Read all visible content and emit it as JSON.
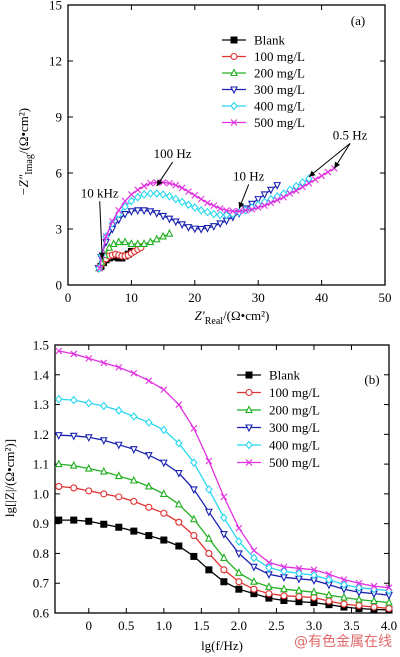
{
  "chart_data": [
    {
      "type": "line",
      "panel_label": "(a)",
      "xlabel_main": "Z′",
      "xlabel_sub": "Real",
      "xlabel_unit": "/(Ω•cm²)",
      "ylabel_main": "−Z″",
      "ylabel_sub": "Imag",
      "ylabel_unit": "/(Ω•cm²)",
      "xlim": [
        0,
        50
      ],
      "ylim": [
        0,
        15
      ],
      "xticks": [
        0,
        10,
        20,
        30,
        40,
        50
      ],
      "yticks": [
        0,
        3,
        6,
        9,
        12,
        15
      ],
      "legend_position": "top-right",
      "annotations": [
        {
          "text": "10 kHz",
          "at": [
            5.4,
            1.4
          ],
          "label_at": [
            5.0,
            4.7
          ]
        },
        {
          "text": "100 Hz",
          "at": [
            14,
            5.3
          ],
          "label_at": [
            16.5,
            6.8
          ]
        },
        {
          "text": "10 Hz",
          "at": [
            27,
            4.1
          ],
          "label_at": [
            28.5,
            5.6
          ]
        },
        {
          "text": "0.5 Hz",
          "at": [
            38,
            5.8
          ],
          "label_at": [
            44.5,
            7.8
          ]
        }
      ],
      "series": [
        {
          "name": "Blank",
          "color": "#000000",
          "marker": "square",
          "x": [
            5.2,
            5.6,
            6.0,
            6.5,
            7.0,
            7.5,
            8.0,
            8.5,
            9.0,
            9.5,
            10.0
          ],
          "y": [
            1.0,
            1.2,
            1.35,
            1.45,
            1.5,
            1.5,
            1.45,
            1.45,
            1.55,
            1.65,
            1.8
          ]
        },
        {
          "name": "100 mg/L",
          "color": "#e03030",
          "marker": "circle",
          "x": [
            5.0,
            5.4,
            6.0,
            6.5,
            7.0,
            7.5,
            8.0,
            8.5,
            9.0,
            9.5,
            10.0,
            10.5,
            11.0,
            11.5
          ],
          "y": [
            0.95,
            1.15,
            1.4,
            1.55,
            1.6,
            1.65,
            1.6,
            1.55,
            1.55,
            1.6,
            1.7,
            1.8,
            1.9,
            2.0
          ]
        },
        {
          "name": "200 mg/L",
          "color": "#22b022",
          "marker": "triangle-up",
          "x": [
            4.9,
            5.3,
            5.8,
            6.5,
            7.2,
            8.0,
            9.0,
            10.0,
            11.0,
            12.0,
            13.0,
            14.0,
            15.0,
            16.0
          ],
          "y": [
            0.9,
            1.2,
            1.6,
            2.0,
            2.2,
            2.3,
            2.3,
            2.2,
            2.2,
            2.2,
            2.3,
            2.45,
            2.6,
            2.75
          ]
        },
        {
          "name": "300 mg/L",
          "color": "#1a22b0",
          "marker": "triangle-down",
          "x": [
            4.8,
            5.2,
            6,
            7,
            8,
            9,
            10,
            11,
            12,
            13,
            14,
            15,
            16,
            17,
            18,
            19,
            20,
            21,
            22,
            23,
            24,
            25,
            26,
            27,
            28,
            29,
            30,
            31,
            32,
            33
          ],
          "y": [
            0.9,
            1.5,
            2.3,
            3.0,
            3.5,
            3.8,
            3.95,
            4.0,
            4.0,
            3.95,
            3.85,
            3.7,
            3.55,
            3.4,
            3.25,
            3.1,
            3.02,
            3.0,
            3.05,
            3.15,
            3.3,
            3.45,
            3.65,
            3.85,
            4.1,
            4.35,
            4.6,
            4.85,
            5.1,
            5.35
          ]
        },
        {
          "name": "400 mg/L",
          "color": "#28d8f0",
          "marker": "diamond",
          "x": [
            4.9,
            5.3,
            6,
            7,
            8,
            9,
            10,
            11,
            12,
            13,
            14,
            15,
            16,
            17,
            18,
            19,
            20,
            21,
            22,
            23,
            24,
            25,
            26,
            27,
            28,
            29,
            30,
            31,
            32,
            33,
            34,
            35,
            36,
            37,
            38
          ],
          "y": [
            0.9,
            1.6,
            2.6,
            3.3,
            3.8,
            4.2,
            4.5,
            4.7,
            4.85,
            4.9,
            4.9,
            4.85,
            4.75,
            4.6,
            4.45,
            4.3,
            4.15,
            4.0,
            3.9,
            3.8,
            3.75,
            3.75,
            3.8,
            3.9,
            4.0,
            4.15,
            4.3,
            4.45,
            4.6,
            4.75,
            4.9,
            5.1,
            5.3,
            5.5,
            5.7
          ]
        },
        {
          "name": "500 mg/L",
          "color": "#e030e0",
          "marker": "x",
          "x": [
            5.0,
            5.4,
            6,
            7,
            8,
            9,
            10,
            11,
            12,
            13,
            14,
            15,
            16,
            17,
            18,
            19,
            20,
            21,
            22,
            23,
            24,
            25,
            26,
            27,
            28,
            29,
            30,
            31,
            32,
            33,
            34,
            35,
            36,
            37,
            38,
            39,
            40,
            41,
            42
          ],
          "y": [
            0.9,
            1.6,
            2.6,
            3.4,
            4.0,
            4.5,
            4.85,
            5.1,
            5.3,
            5.45,
            5.5,
            5.5,
            5.45,
            5.35,
            5.2,
            5.0,
            4.8,
            4.6,
            4.4,
            4.25,
            4.1,
            4.0,
            3.95,
            3.95,
            4.0,
            4.05,
            4.15,
            4.25,
            4.4,
            4.55,
            4.7,
            4.9,
            5.05,
            5.25,
            5.45,
            5.65,
            5.85,
            6.05,
            6.25
          ]
        }
      ]
    },
    {
      "type": "line",
      "panel_label": "(b)",
      "xlabel": "lg(f/Hz)",
      "ylabel": "lg[|Z|/(Ω•cm²)]",
      "xlim": [
        -0.45,
        4.0
      ],
      "ylim": [
        0.6,
        1.5
      ],
      "xticks": [
        0,
        0.5,
        1.0,
        1.5,
        2.0,
        2.5,
        3.0,
        3.5,
        4.0
      ],
      "xtick_labels": [
        "0",
        "0.5",
        "1.0",
        "1.5",
        "2.0",
        "2.5",
        "3.0",
        "3.5",
        "4.0"
      ],
      "yticks": [
        0.6,
        0.7,
        0.8,
        0.9,
        1.0,
        1.1,
        1.2,
        1.3,
        1.4,
        1.5
      ],
      "ytick_labels": [
        "0.6",
        "0.7",
        "0.8",
        "0.9",
        "1.0",
        "1.1",
        "1.2",
        "1.3",
        "1.4",
        "1.5"
      ],
      "legend_position": "top-right",
      "series": [
        {
          "name": "Blank",
          "color": "#000000",
          "marker": "square",
          "x": [
            -0.4,
            -0.2,
            0,
            0.2,
            0.4,
            0.6,
            0.8,
            1.0,
            1.2,
            1.4,
            1.6,
            1.8,
            2.0,
            2.2,
            2.4,
            2.6,
            2.8,
            3.0,
            3.2,
            3.4,
            3.6,
            3.8,
            4.0
          ],
          "y": [
            0.912,
            0.912,
            0.908,
            0.898,
            0.888,
            0.875,
            0.86,
            0.845,
            0.825,
            0.79,
            0.745,
            0.705,
            0.68,
            0.665,
            0.65,
            0.642,
            0.638,
            0.635,
            0.628,
            0.62,
            0.615,
            0.612,
            0.61
          ]
        },
        {
          "name": "100 mg/L",
          "color": "#e03030",
          "marker": "circle",
          "x": [
            -0.4,
            -0.2,
            0,
            0.2,
            0.4,
            0.6,
            0.8,
            1.0,
            1.2,
            1.4,
            1.6,
            1.8,
            2.0,
            2.2,
            2.4,
            2.6,
            2.8,
            3.0,
            3.2,
            3.4,
            3.6,
            3.8,
            4.0
          ],
          "y": [
            1.025,
            1.02,
            1.01,
            1.0,
            0.99,
            0.975,
            0.955,
            0.935,
            0.905,
            0.86,
            0.8,
            0.745,
            0.705,
            0.68,
            0.665,
            0.658,
            0.655,
            0.652,
            0.64,
            0.63,
            0.625,
            0.62,
            0.615
          ]
        },
        {
          "name": "200 mg/L",
          "color": "#22b022",
          "marker": "triangle-up",
          "x": [
            -0.4,
            -0.2,
            0,
            0.2,
            0.4,
            0.6,
            0.8,
            1.0,
            1.2,
            1.4,
            1.6,
            1.8,
            2.0,
            2.2,
            2.4,
            2.6,
            2.8,
            3.0,
            3.2,
            3.4,
            3.6,
            3.8,
            4.0
          ],
          "y": [
            1.1,
            1.095,
            1.085,
            1.075,
            1.06,
            1.045,
            1.025,
            1.0,
            0.965,
            0.915,
            0.85,
            0.785,
            0.735,
            0.705,
            0.688,
            0.68,
            0.675,
            0.67,
            0.66,
            0.652,
            0.645,
            0.64,
            0.635
          ]
        },
        {
          "name": "300 mg/L",
          "color": "#1a22b0",
          "marker": "triangle-down",
          "x": [
            -0.4,
            -0.2,
            0,
            0.2,
            0.4,
            0.6,
            0.8,
            1.0,
            1.2,
            1.4,
            1.6,
            1.8,
            2.0,
            2.2,
            2.4,
            2.6,
            2.8,
            3.0,
            3.2,
            3.4,
            3.6,
            3.8,
            4.0
          ],
          "y": [
            1.197,
            1.195,
            1.19,
            1.18,
            1.165,
            1.15,
            1.13,
            1.105,
            1.07,
            1.015,
            0.94,
            0.865,
            0.8,
            0.755,
            0.73,
            0.72,
            0.715,
            0.71,
            0.695,
            0.68,
            0.67,
            0.665,
            0.66
          ]
        },
        {
          "name": "400 mg/L",
          "color": "#28d8f0",
          "marker": "diamond",
          "x": [
            -0.4,
            -0.2,
            0,
            0.2,
            0.4,
            0.6,
            0.8,
            1.0,
            1.2,
            1.4,
            1.6,
            1.8,
            2.0,
            2.2,
            2.4,
            2.6,
            2.8,
            3.0,
            3.2,
            3.4,
            3.6,
            3.8,
            4.0
          ],
          "y": [
            1.318,
            1.315,
            1.305,
            1.295,
            1.28,
            1.26,
            1.24,
            1.215,
            1.17,
            1.105,
            1.015,
            0.92,
            0.84,
            0.785,
            0.752,
            0.74,
            0.733,
            0.727,
            0.712,
            0.695,
            0.685,
            0.68,
            0.675
          ]
        },
        {
          "name": "500 mg/L",
          "color": "#e030e0",
          "marker": "x",
          "x": [
            -0.4,
            -0.2,
            0,
            0.2,
            0.4,
            0.6,
            0.8,
            1.0,
            1.2,
            1.4,
            1.6,
            1.8,
            2.0,
            2.2,
            2.4,
            2.6,
            2.8,
            3.0,
            3.2,
            3.4,
            3.6,
            3.8,
            4.0
          ],
          "y": [
            1.48,
            1.47,
            1.455,
            1.44,
            1.425,
            1.405,
            1.38,
            1.35,
            1.3,
            1.22,
            1.11,
            0.99,
            0.885,
            0.81,
            0.77,
            0.755,
            0.75,
            0.745,
            0.73,
            0.712,
            0.7,
            0.69,
            0.685
          ]
        }
      ]
    }
  ],
  "watermark": "@有色金属在线"
}
